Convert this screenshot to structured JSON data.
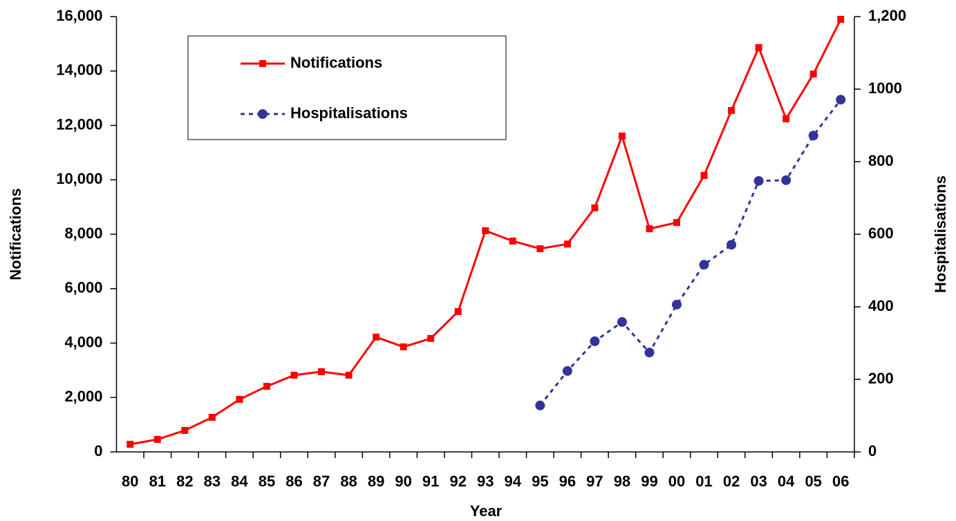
{
  "chart_data": {
    "type": "line",
    "x_label": "Year",
    "y_label": "Notifications",
    "y2_label": "Hospitalisations",
    "categories": [
      "80",
      "81",
      "82",
      "83",
      "84",
      "85",
      "86",
      "87",
      "88",
      "89",
      "90",
      "91",
      "92",
      "93",
      "94",
      "95",
      "96",
      "97",
      "98",
      "99",
      "00",
      "01",
      "02",
      "03",
      "04",
      "05",
      "06"
    ],
    "series": [
      {
        "name": "Notifications",
        "color": "#ff0000",
        "marker": "square",
        "dashed": false,
        "values": [
          280,
          460,
          790,
          1270,
          1930,
          2410,
          2820,
          2950,
          2820,
          4220,
          3860,
          4170,
          5160,
          8130,
          7750,
          7470,
          7640,
          8970,
          11610,
          8200,
          8430,
          10160,
          12550,
          14860,
          12240,
          13890,
          15900
        ]
      },
      {
        "name": "Hospitalisations",
        "color": "#333399",
        "marker": "circle",
        "dashed": true,
        "axis": "y2",
        "values": [
          null,
          null,
          null,
          null,
          null,
          null,
          null,
          null,
          null,
          null,
          null,
          null,
          null,
          null,
          null,
          128,
          223,
          305,
          358,
          274,
          406,
          516,
          571,
          747,
          749,
          872,
          971
        ]
      }
    ],
    "ylim": [
      0,
      16000
    ],
    "yticks": [
      0,
      {
        "value": 2000,
        "label": "2,000"
      },
      {
        "value": 4000,
        "label": "4,000"
      },
      {
        "value": 6000,
        "label": "6,000"
      },
      {
        "value": 8000,
        "label": "8,000"
      },
      {
        "value": 10000,
        "label": "10,000"
      },
      {
        "value": 12000,
        "label": "12,000"
      },
      {
        "value": 14000,
        "label": "14,000"
      },
      {
        "value": 16000,
        "label": "16,000"
      }
    ],
    "y2lim": [
      0,
      1200
    ],
    "y2ticks": [
      0,
      200,
      400,
      600,
      800,
      1000,
      {
        "value": 1200,
        "label": "1,200"
      }
    ],
    "grid": false
  }
}
